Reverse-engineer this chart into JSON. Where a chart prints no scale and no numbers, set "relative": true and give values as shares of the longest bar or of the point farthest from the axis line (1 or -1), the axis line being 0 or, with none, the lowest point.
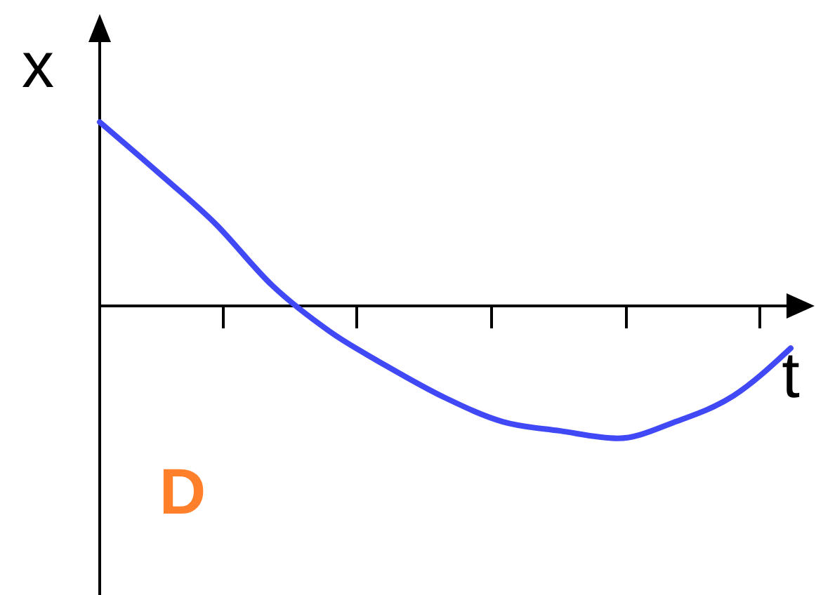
{
  "chart_data": {
    "type": "line",
    "relative": true,
    "xlabel": "t",
    "ylabel": "x",
    "annotations": [
      "D"
    ],
    "categories": [
      null,
      null,
      null,
      null,
      null,
      null,
      null,
      null,
      null,
      null,
      null,
      null,
      null
    ],
    "series": [
      {
        "color": "#4049f5",
        "values": [
          1.0,
          0.73,
          0.45,
          0.11,
          -0.14,
          -0.33,
          -0.5,
          -0.63,
          -0.68,
          -0.72,
          -0.63,
          -0.49,
          -0.23
        ]
      }
    ],
    "line_style": "solid"
  }
}
